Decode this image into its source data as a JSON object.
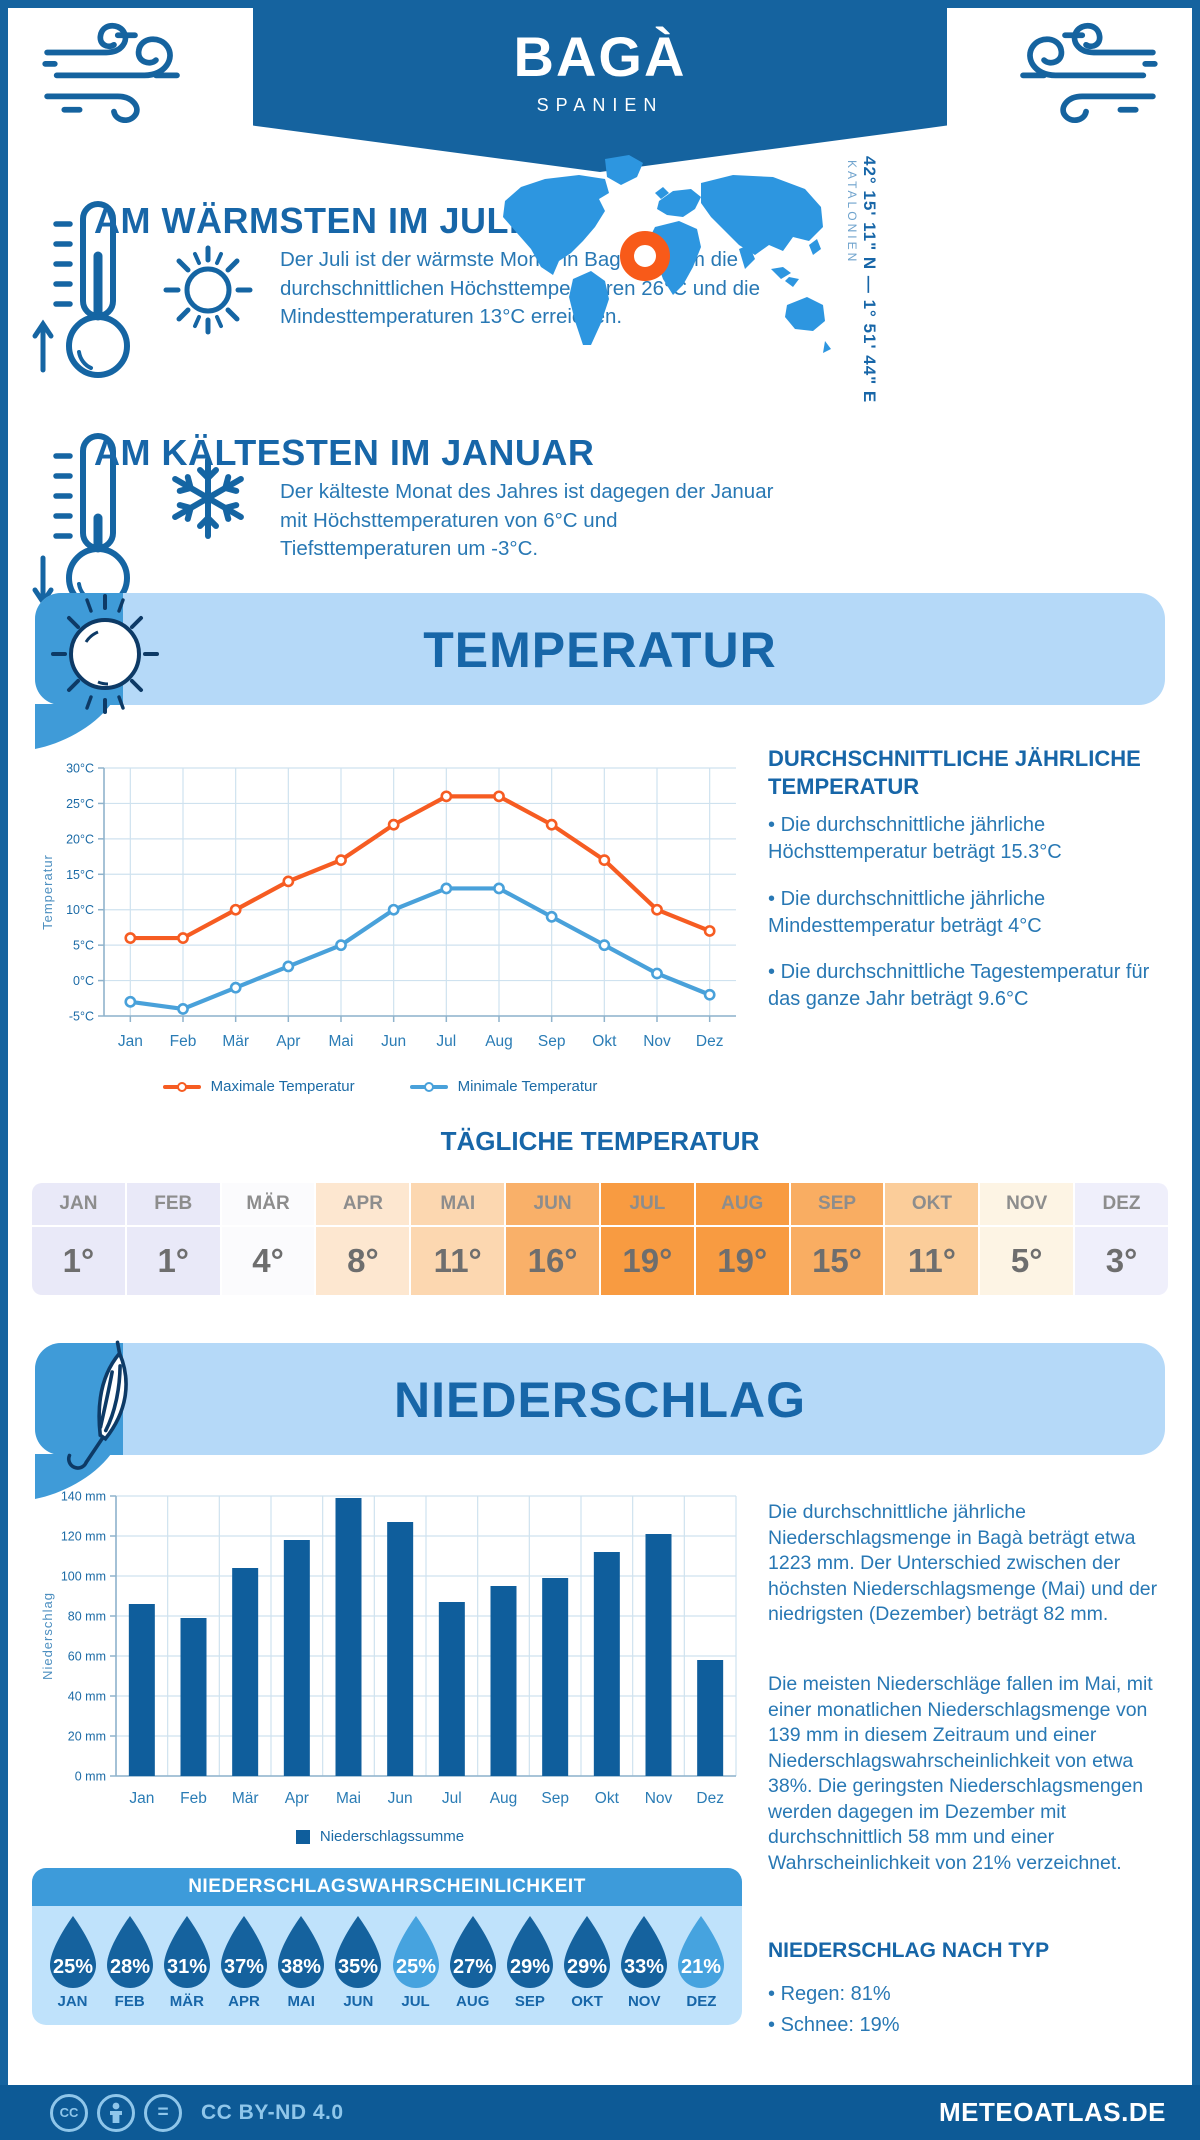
{
  "header": {
    "title": "BAGÀ",
    "subtitle": "SPANIEN"
  },
  "location": {
    "coordinates": "42° 15' 11\" N — 1° 51' 44\" E",
    "region": "KATALONIEN"
  },
  "highlights": {
    "warmest": {
      "heading": "AM WÄRMSTEN IM JULI",
      "text": "Der Juli ist der wärmste Monat in Bagà, in dem die durchschnittlichen Höchsttemperaturen 26°C und die Mindesttemperaturen 13°C erreichen."
    },
    "coldest": {
      "heading": "AM KÄLTESTEN IM JANUAR",
      "text": "Der kälteste Monat des Jahres ist dagegen der Januar mit Höchsttemperaturen von 6°C und Tiefsttemperaturen um -3°C."
    }
  },
  "temperature": {
    "section_title": "TEMPERATUR",
    "annual_heading": "DURCHSCHNITTLICHE JÄHRLICHE TEMPERATUR",
    "annual_bullets": [
      "Die durchschnittliche jährliche Höchsttemperatur beträgt 15.3°C",
      "Die durchschnittliche jährliche Mindesttemperatur beträgt 4°C",
      "Die durchschnittliche Tagestemperatur für das ganze Jahr beträgt 9.6°C"
    ],
    "daily_heading": "TÄGLICHE TEMPERATUR",
    "daily_table": {
      "months": [
        "JAN",
        "FEB",
        "MÄR",
        "APR",
        "MAI",
        "JUN",
        "JUL",
        "AUG",
        "SEP",
        "OKT",
        "NOV",
        "DEZ"
      ],
      "values": [
        "1°",
        "1°",
        "4°",
        "8°",
        "11°",
        "16°",
        "19°",
        "19°",
        "15°",
        "11°",
        "5°",
        "3°"
      ],
      "cell_colors": [
        "#e9e9f8",
        "#e9e9f8",
        "#fbfbfd",
        "#fde7d0",
        "#fcd7b0",
        "#f9b069",
        "#f89b41",
        "#f89b41",
        "#f9ad62",
        "#fbcd9a",
        "#fdf4e4",
        "#efeffb"
      ]
    }
  },
  "precipitation": {
    "section_title": "NIEDERSCHLAG",
    "p1": "Die durchschnittliche jährliche Niederschlagsmenge in Bagà beträgt etwa 1223 mm. Der Unterschied zwischen der höchsten Niederschlagsmenge (Mai) und der niedrigsten (Dezember) beträgt 82 mm.",
    "p2": "Die meisten Niederschläge fallen im Mai, mit einer monatlichen Niederschlagsmenge von 139 mm in diesem Zeitraum und einer Niederschlagswahrscheinlichkeit von etwa 38%. Die geringsten Niederschlagsmengen werden dagegen im Dezember mit durchschnittlich 58 mm und einer Wahrscheinlichkeit von 21% verzeichnet.",
    "type_heading": "NIEDERSCHLAG NACH TYP",
    "type_bullets": [
      "Regen: 81%",
      "Schnee: 19%"
    ],
    "probability": {
      "heading": "NIEDERSCHLAGSWAHRSCHEINLICHKEIT",
      "months": [
        "JAN",
        "FEB",
        "MÄR",
        "APR",
        "MAI",
        "JUN",
        "JUL",
        "AUG",
        "SEP",
        "OKT",
        "NOV",
        "DEZ"
      ],
      "values": [
        "25%",
        "28%",
        "31%",
        "37%",
        "38%",
        "35%",
        "25%",
        "27%",
        "29%",
        "29%",
        "33%",
        "21%"
      ],
      "drop_colors": [
        "#15629e",
        "#15629e",
        "#15629e",
        "#15629e",
        "#15629e",
        "#15629e",
        "#46a3df",
        "#15629e",
        "#15629e",
        "#15629e",
        "#15629e",
        "#46a3df"
      ]
    }
  },
  "chart_data": [
    {
      "type": "line",
      "x": [
        "Jan",
        "Feb",
        "Mär",
        "Apr",
        "Mai",
        "Jun",
        "Jul",
        "Aug",
        "Sep",
        "Okt",
        "Nov",
        "Dez"
      ],
      "series": [
        {
          "name": "Maximale Temperatur",
          "color": "#f65c22",
          "values": [
            6,
            6,
            10,
            14,
            17,
            22,
            26,
            26,
            22,
            17,
            10,
            7
          ]
        },
        {
          "name": "Minimale Temperatur",
          "color": "#49a1da",
          "values": [
            -3,
            -4,
            -1,
            2,
            5,
            10,
            13,
            13,
            9,
            5,
            1,
            -2
          ]
        }
      ],
      "ylabel": "Temperatur",
      "ylim": [
        -5,
        30
      ],
      "ytick_step": 5,
      "ytick_suffix": "°C",
      "grid": true,
      "legend_position": "bottom"
    },
    {
      "type": "bar",
      "categories": [
        "Jan",
        "Feb",
        "Mär",
        "Apr",
        "Mai",
        "Jun",
        "Jul",
        "Aug",
        "Sep",
        "Okt",
        "Nov",
        "Dez"
      ],
      "values": [
        86,
        79,
        104,
        118,
        139,
        127,
        87,
        95,
        99,
        112,
        121,
        58
      ],
      "series_name": "Niederschlagssumme",
      "color": "#0f5e9c",
      "ylabel": "Niederschlag",
      "ylim": [
        0,
        140
      ],
      "ytick_step": 20,
      "ytick_suffix": " mm",
      "grid": true,
      "legend_position": "bottom"
    }
  ],
  "footer": {
    "license": "CC BY-ND 4.0",
    "site": "METEOATLAS.DE"
  },
  "colors": {
    "primary_dark": "#15639f",
    "banner_light": "#b5d9f8",
    "banner_cap": "#3f9bd8",
    "heading": "#1766a8",
    "body_text": "#2878b4",
    "map_blue": "#2d96e0",
    "marker_orange": "#f85a19",
    "footer_bg": "#0d5a96",
    "icon_light": "#8fc6ea",
    "grid": "#cfe2ef",
    "axis": "#8fb3cc"
  }
}
